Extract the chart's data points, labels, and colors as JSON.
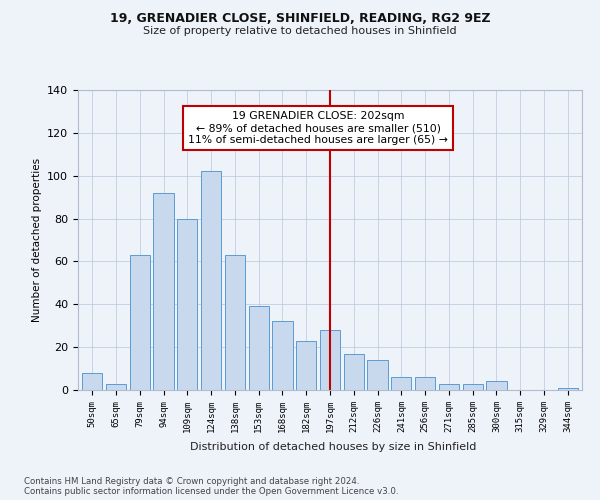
{
  "title1": "19, GRENADIER CLOSE, SHINFIELD, READING, RG2 9EZ",
  "title2": "Size of property relative to detached houses in Shinfield",
  "xlabel": "Distribution of detached houses by size in Shinfield",
  "ylabel": "Number of detached properties",
  "categories": [
    "50sqm",
    "65sqm",
    "79sqm",
    "94sqm",
    "109sqm",
    "124sqm",
    "138sqm",
    "153sqm",
    "168sqm",
    "182sqm",
    "197sqm",
    "212sqm",
    "226sqm",
    "241sqm",
    "256sqm",
    "271sqm",
    "285sqm",
    "300sqm",
    "315sqm",
    "329sqm",
    "344sqm"
  ],
  "values": [
    8,
    3,
    63,
    92,
    80,
    102,
    63,
    39,
    32,
    23,
    28,
    17,
    14,
    6,
    6,
    3,
    3,
    4,
    0,
    0,
    1
  ],
  "bar_color": "#c8d9ee",
  "bar_edge_color": "#5b9bd5",
  "ref_line_index": 10,
  "ref_line_color": "#c00000",
  "annotation_text": "19 GRENADIER CLOSE: 202sqm\n← 89% of detached houses are smaller (510)\n11% of semi-detached houses are larger (65) →",
  "annotation_box_color": "#c00000",
  "footer1": "Contains HM Land Registry data © Crown copyright and database right 2024.",
  "footer2": "Contains public sector information licensed under the Open Government Licence v3.0.",
  "ylim": [
    0,
    140
  ],
  "yticks": [
    0,
    20,
    40,
    60,
    80,
    100,
    120,
    140
  ],
  "background_color": "#eef2f9"
}
